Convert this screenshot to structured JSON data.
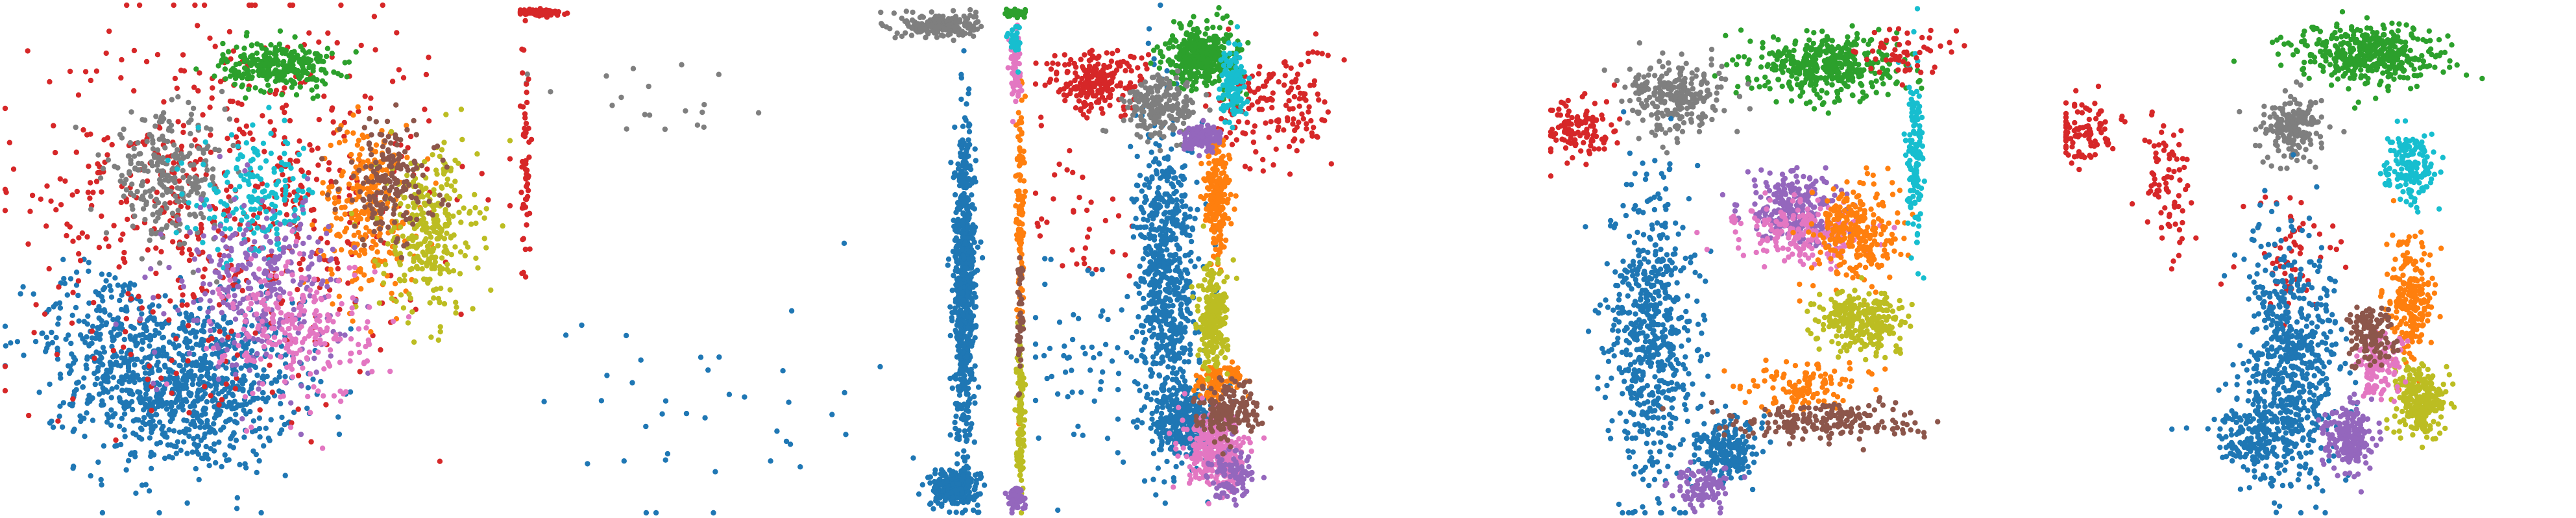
{
  "figure": {
    "panel_count": 5
  },
  "palette": {
    "blue": "#1f77b4",
    "orange": "#ff7f0e",
    "green": "#2ca02c",
    "red": "#d62728",
    "purple": "#9467bd",
    "brown": "#8c564b",
    "pink": "#e377c2",
    "gray": "#7f7f7f",
    "olive": "#bcbd22",
    "cyan": "#17becf"
  },
  "chart_data": [
    {
      "type": "scatter",
      "title": "",
      "xlabel": "",
      "ylabel": "",
      "axes_visible": false,
      "grid": false,
      "legend": "none",
      "xlim": [
        0,
        1
      ],
      "ylim": [
        0,
        1
      ],
      "series": [
        {
          "color": "blue",
          "clusters": [
            [
              0.36,
              0.25,
              0.18,
              0.14,
              900
            ],
            [
              0.2,
              0.35,
              0.12,
              0.12,
              200
            ]
          ]
        },
        {
          "color": "red",
          "clusters": [
            [
              0.45,
              0.62,
              0.33,
              0.3,
              600
            ]
          ]
        },
        {
          "color": "green",
          "clusters": [
            [
              0.54,
              0.88,
              0.09,
              0.04,
              280
            ]
          ]
        },
        {
          "color": "orange",
          "clusters": [
            [
              0.72,
              0.6,
              0.08,
              0.14,
              260
            ]
          ]
        },
        {
          "color": "olive",
          "clusters": [
            [
              0.84,
              0.55,
              0.08,
              0.14,
              300
            ]
          ]
        },
        {
          "color": "brown",
          "clusters": [
            [
              0.76,
              0.65,
              0.08,
              0.1,
              180
            ]
          ]
        },
        {
          "color": "gray",
          "clusters": [
            [
              0.32,
              0.66,
              0.1,
              0.1,
              260
            ]
          ]
        },
        {
          "color": "cyan",
          "clusters": [
            [
              0.5,
              0.62,
              0.1,
              0.1,
              180
            ]
          ]
        },
        {
          "color": "purple",
          "clusters": [
            [
              0.5,
              0.45,
              0.14,
              0.14,
              300
            ]
          ]
        },
        {
          "color": "pink",
          "clusters": [
            [
              0.58,
              0.36,
              0.12,
              0.12,
              240
            ]
          ]
        }
      ]
    },
    {
      "type": "scatter",
      "title": "",
      "xlabel": "",
      "ylabel": "",
      "axes_visible": false,
      "grid": false,
      "legend": "none",
      "xlim": [
        0,
        1
      ],
      "ylim": [
        0,
        1
      ],
      "series": [
        {
          "color": "blue",
          "clusters": [
            [
              0.88,
              0.45,
              0.018,
              0.25,
              700
            ],
            [
              0.86,
              0.05,
              0.04,
              0.03,
              260
            ],
            [
              0.4,
              0.2,
              0.3,
              0.2,
              40
            ]
          ]
        },
        {
          "color": "gray",
          "clusters": [
            [
              0.83,
              0.96,
              0.06,
              0.02,
              220
            ],
            [
              0.3,
              0.8,
              0.2,
              0.1,
              20
            ]
          ]
        },
        {
          "color": "red",
          "clusters": [
            [
              0.04,
              0.985,
              0.04,
              0.006,
              80
            ],
            [
              0.01,
              0.7,
              0.008,
              0.2,
              60
            ]
          ]
        },
        {
          "color": "orange",
          "clusters": [
            [
              0.99,
              0.6,
              0.006,
              0.2,
              120
            ]
          ]
        },
        {
          "color": "olive",
          "clusters": [
            [
              0.99,
              0.2,
              0.006,
              0.12,
              140
            ]
          ]
        },
        {
          "color": "pink",
          "clusters": [
            [
              0.98,
              0.88,
              0.01,
              0.06,
              60
            ]
          ]
        },
        {
          "color": "purple",
          "clusters": [
            [
              0.98,
              0.03,
              0.015,
              0.02,
              60
            ]
          ]
        },
        {
          "color": "green",
          "clusters": [
            [
              0.98,
              0.985,
              0.02,
              0.008,
              40
            ]
          ]
        },
        {
          "color": "cyan",
          "clusters": [
            [
              0.98,
              0.93,
              0.01,
              0.03,
              30
            ]
          ]
        },
        {
          "color": "brown",
          "clusters": [
            [
              0.99,
              0.4,
              0.005,
              0.1,
              40
            ]
          ]
        }
      ]
    },
    {
      "type": "scatter",
      "title": "",
      "xlabel": "",
      "ylabel": "",
      "axes_visible": false,
      "grid": false,
      "legend": "none",
      "xlim": [
        0,
        1
      ],
      "ylim": [
        0,
        1
      ],
      "series": [
        {
          "color": "red",
          "clusters": [
            [
              0.12,
              0.85,
              0.08,
              0.05,
              220
            ],
            [
              0.47,
              0.8,
              0.1,
              0.1,
              160
            ],
            [
              0.1,
              0.6,
              0.1,
              0.2,
              40
            ]
          ]
        },
        {
          "color": "blue",
          "clusters": [
            [
              0.26,
              0.45,
              0.05,
              0.25,
              700
            ],
            [
              0.3,
              0.18,
              0.05,
              0.06,
              300
            ],
            [
              0.1,
              0.3,
              0.1,
              0.15,
              60
            ]
          ]
        },
        {
          "color": "green",
          "clusters": [
            [
              0.33,
              0.9,
              0.06,
              0.05,
              380
            ]
          ]
        },
        {
          "color": "gray",
          "clusters": [
            [
              0.25,
              0.8,
              0.06,
              0.05,
              220
            ]
          ]
        },
        {
          "color": "orange",
          "clusters": [
            [
              0.36,
              0.62,
              0.02,
              0.1,
              220
            ],
            [
              0.36,
              0.26,
              0.04,
              0.03,
              100
            ]
          ]
        },
        {
          "color": "olive",
          "clusters": [
            [
              0.35,
              0.38,
              0.025,
              0.08,
              240
            ]
          ]
        },
        {
          "color": "pink",
          "clusters": [
            [
              0.36,
              0.12,
              0.05,
              0.06,
              320
            ]
          ]
        },
        {
          "color": "purple",
          "clusters": [
            [
              0.33,
              0.74,
              0.03,
              0.02,
              140
            ],
            [
              0.39,
              0.08,
              0.04,
              0.04,
              100
            ]
          ]
        },
        {
          "color": "cyan",
          "clusters": [
            [
              0.39,
              0.84,
              0.02,
              0.06,
              120
            ]
          ]
        },
        {
          "color": "brown",
          "clusters": [
            [
              0.38,
              0.2,
              0.05,
              0.05,
              180
            ]
          ]
        }
      ]
    },
    {
      "type": "scatter",
      "title": "",
      "xlabel": "",
      "ylabel": "",
      "axes_visible": false,
      "grid": false,
      "legend": "none",
      "xlim": [
        0,
        1
      ],
      "ylim": [
        0,
        1
      ],
      "series": [
        {
          "color": "green",
          "clusters": [
            [
              0.55,
              0.88,
              0.12,
              0.05,
              420
            ]
          ]
        },
        {
          "color": "gray",
          "clusters": [
            [
              0.25,
              0.82,
              0.08,
              0.06,
              260
            ]
          ]
        },
        {
          "color": "blue",
          "clusters": [
            [
              0.2,
              0.35,
              0.07,
              0.25,
              600
            ],
            [
              0.35,
              0.12,
              0.05,
              0.05,
              200
            ]
          ]
        },
        {
          "color": "purple",
          "clusters": [
            [
              0.48,
              0.6,
              0.08,
              0.06,
              240
            ],
            [
              0.3,
              0.05,
              0.05,
              0.03,
              100
            ]
          ]
        },
        {
          "color": "pink",
          "clusters": [
            [
              0.5,
              0.55,
              0.1,
              0.05,
              200
            ]
          ]
        },
        {
          "color": "orange",
          "clusters": [
            [
              0.6,
              0.55,
              0.07,
              0.08,
              260
            ],
            [
              0.5,
              0.25,
              0.1,
              0.04,
              120
            ]
          ]
        },
        {
          "color": "olive",
          "clusters": [
            [
              0.62,
              0.38,
              0.07,
              0.05,
              280
            ]
          ]
        },
        {
          "color": "brown",
          "clusters": [
            [
              0.55,
              0.18,
              0.15,
              0.03,
              200
            ]
          ]
        },
        {
          "color": "cyan",
          "clusters": [
            [
              0.72,
              0.7,
              0.015,
              0.15,
              140
            ]
          ]
        },
        {
          "color": "red",
          "clusters": [
            [
              0.7,
              0.9,
              0.08,
              0.05,
              60
            ],
            [
              0.05,
              0.75,
              0.06,
              0.05,
              120
            ]
          ]
        }
      ]
    },
    {
      "type": "scatter",
      "title": "",
      "xlabel": "",
      "ylabel": "",
      "axes_visible": false,
      "grid": false,
      "legend": "none",
      "xlim": [
        0,
        1
      ],
      "ylim": [
        0,
        1
      ],
      "series": [
        {
          "color": "green",
          "clusters": [
            [
              0.6,
              0.9,
              0.12,
              0.05,
              420
            ]
          ]
        },
        {
          "color": "gray",
          "clusters": [
            [
              0.45,
              0.76,
              0.05,
              0.05,
              200
            ]
          ]
        },
        {
          "color": "red",
          "clusters": [
            [
              0.03,
              0.75,
              0.06,
              0.06,
              100
            ],
            [
              0.2,
              0.65,
              0.04,
              0.12,
              80
            ],
            [
              0.45,
              0.5,
              0.08,
              0.1,
              60
            ]
          ]
        },
        {
          "color": "blue",
          "clusters": [
            [
              0.45,
              0.3,
              0.08,
              0.2,
              600
            ],
            [
              0.38,
              0.15,
              0.08,
              0.06,
              200
            ]
          ]
        },
        {
          "color": "cyan",
          "clusters": [
            [
              0.68,
              0.68,
              0.04,
              0.05,
              160
            ]
          ]
        },
        {
          "color": "orange",
          "clusters": [
            [
              0.68,
              0.42,
              0.04,
              0.1,
              220
            ]
          ]
        },
        {
          "color": "olive",
          "clusters": [
            [
              0.7,
              0.22,
              0.04,
              0.06,
              260
            ]
          ]
        },
        {
          "color": "purple",
          "clusters": [
            [
              0.56,
              0.15,
              0.04,
              0.05,
              200
            ]
          ]
        },
        {
          "color": "pink",
          "clusters": [
            [
              0.62,
              0.3,
              0.04,
              0.06,
              120
            ]
          ]
        },
        {
          "color": "brown",
          "clusters": [
            [
              0.6,
              0.35,
              0.04,
              0.05,
              140
            ]
          ]
        }
      ]
    }
  ]
}
